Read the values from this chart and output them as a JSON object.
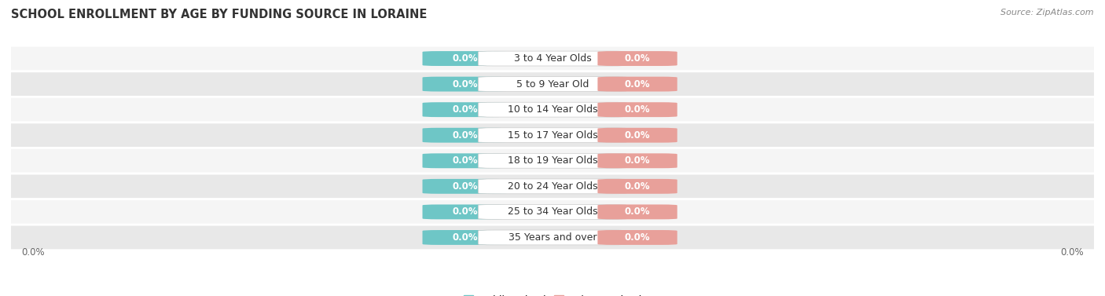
{
  "title": "SCHOOL ENROLLMENT BY AGE BY FUNDING SOURCE IN LORAINE",
  "source": "Source: ZipAtlas.com",
  "categories": [
    "3 to 4 Year Olds",
    "5 to 9 Year Old",
    "10 to 14 Year Olds",
    "15 to 17 Year Olds",
    "18 to 19 Year Olds",
    "20 to 24 Year Olds",
    "25 to 34 Year Olds",
    "35 Years and over"
  ],
  "public_values": [
    0.0,
    0.0,
    0.0,
    0.0,
    0.0,
    0.0,
    0.0,
    0.0
  ],
  "private_values": [
    0.0,
    0.0,
    0.0,
    0.0,
    0.0,
    0.0,
    0.0,
    0.0
  ],
  "public_color": "#6ec6c6",
  "private_color": "#e8a09a",
  "row_bg_color_odd": "#f5f5f5",
  "row_bg_color_even": "#e8e8e8",
  "label_color": "#ffffff",
  "category_bg_color": "#ffffff",
  "category_text_color": "#333333",
  "axis_label": "0.0%",
  "title_fontsize": 10.5,
  "source_fontsize": 8,
  "legend_fontsize": 9,
  "category_fontsize": 9,
  "value_fontsize": 8.5
}
